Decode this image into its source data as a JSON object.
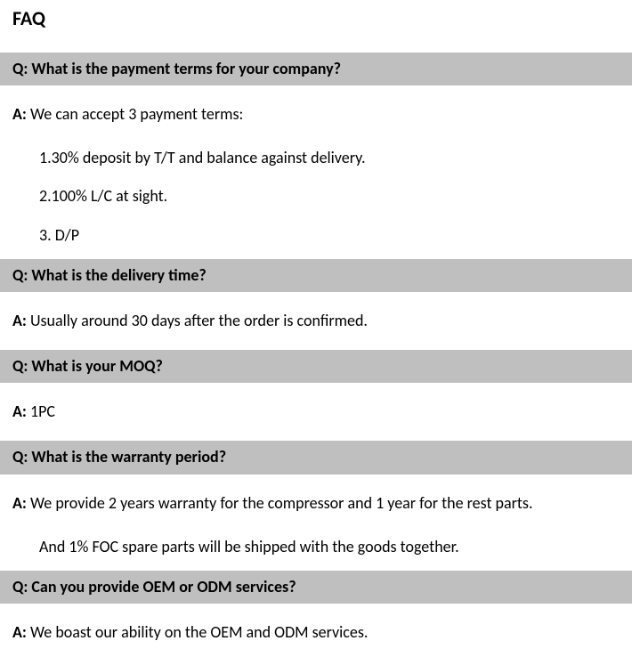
{
  "title": "FAQ",
  "labels": {
    "q": "Q:",
    "a": "A:"
  },
  "colors": {
    "question_bg": "#bfbfbf",
    "text": "#000000",
    "page_bg": "#ffffff"
  },
  "faq": [
    {
      "question": "What is the payment terms for your company?",
      "answer": "We can accept 3 payment terms:",
      "details": [
        "1.30% deposit by T/T and balance against delivery.",
        "2.100% L/C at sight.",
        "3. D/P"
      ]
    },
    {
      "question": "What is the delivery time?",
      "answer": "Usually around 30 days after the order is confirmed.",
      "details": []
    },
    {
      "question": "What is your MOQ?",
      "answer": "1PC",
      "details": []
    },
    {
      "question": "What is the warranty period?",
      "answer": "We provide 2 years warranty for the compressor and 1 year for the rest parts.",
      "details": [
        "And 1% FOC spare parts will be shipped with the goods together."
      ]
    },
    {
      "question": "Can you provide OEM or ODM services?",
      "answer": "We boast our ability on the OEM and ODM services.",
      "details": []
    }
  ]
}
